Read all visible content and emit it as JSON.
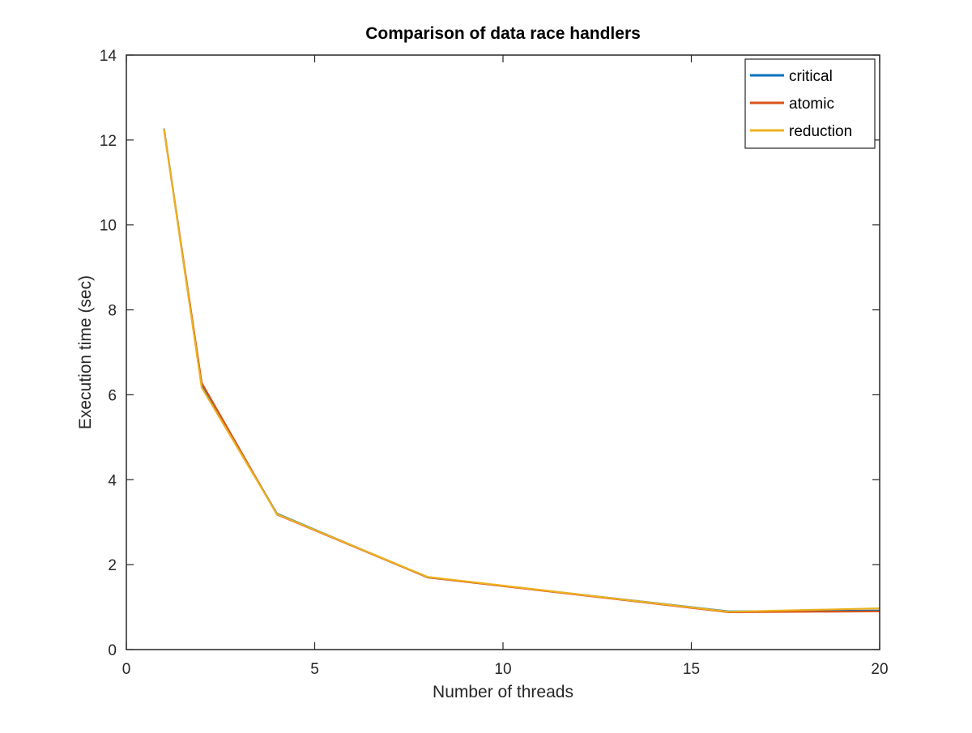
{
  "chart_data": {
    "type": "line",
    "title": "Comparison of data race handlers",
    "xlabel": "Number of threads",
    "ylabel": "Execution time (sec)",
    "xlim": [
      0,
      20
    ],
    "ylim": [
      0,
      14
    ],
    "xticks": [
      0,
      5,
      10,
      15,
      20
    ],
    "yticks": [
      0,
      2,
      4,
      6,
      8,
      10,
      12,
      14
    ],
    "grid": false,
    "legend_position": "top-right",
    "x": [
      1,
      2,
      4,
      8,
      16,
      20
    ],
    "series": [
      {
        "name": "critical",
        "color": "#0072BD",
        "values": [
          12.27,
          6.2,
          3.2,
          1.7,
          0.9,
          0.92
        ]
      },
      {
        "name": "atomic",
        "color": "#D95319",
        "values": [
          12.25,
          6.28,
          3.18,
          1.7,
          0.88,
          0.9
        ]
      },
      {
        "name": "reduction",
        "color": "#EDB120",
        "values": [
          12.26,
          6.17,
          3.19,
          1.71,
          0.89,
          0.97
        ]
      }
    ]
  }
}
